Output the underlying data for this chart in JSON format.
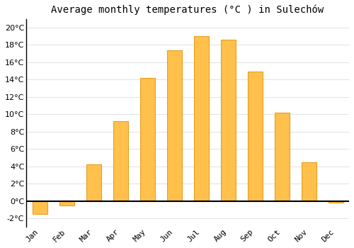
{
  "title": "Average monthly temperatures (°C ) in Sulechów",
  "months": [
    "Jan",
    "Feb",
    "Mar",
    "Apr",
    "May",
    "Jun",
    "Jul",
    "Aug",
    "Sep",
    "Oct",
    "Nov",
    "Dec"
  ],
  "values": [
    -1.5,
    -0.5,
    4.2,
    9.2,
    14.2,
    17.4,
    19.0,
    18.6,
    14.9,
    10.2,
    4.5,
    -0.2
  ],
  "bar_color": "#FFC04C",
  "bar_edge_color": "#E8A020",
  "ylim": [
    -3,
    21
  ],
  "yticks": [
    -2,
    0,
    2,
    4,
    6,
    8,
    10,
    12,
    14,
    16,
    18,
    20
  ],
  "background_color": "#ffffff",
  "grid_color": "#dddddd",
  "title_fontsize": 10,
  "tick_fontsize": 8,
  "zero_line_color": "#000000",
  "bar_width": 0.55
}
